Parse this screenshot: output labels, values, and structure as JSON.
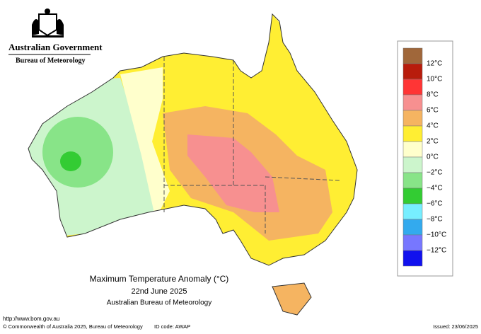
{
  "header": {
    "government": "Australian Government",
    "bureau": "Bureau of Meteorology"
  },
  "map": {
    "title": "Maximum Temperature Anomaly (°C)",
    "date": "22nd June 2025",
    "source": "Australian Bureau of Meteorology"
  },
  "legend": {
    "colors": [
      "#a0673a",
      "#b81c0c",
      "#ff3535",
      "#f79090",
      "#f5b461",
      "#ffee33",
      "#ffffcc",
      "#ccf5cc",
      "#88e488",
      "#33cc33",
      "#77eeff",
      "#33aaee",
      "#7777ff",
      "#1111ee"
    ],
    "labels": [
      "12°C",
      "10°C",
      "8°C",
      "6°C",
      "4°C",
      "2°C",
      "0°C",
      "−2°C",
      "−4°C",
      "−6°C",
      "−8°C",
      "−10°C",
      "−12°C"
    ]
  },
  "footer": {
    "url": "http://www.bom.gov.au",
    "copyright": "© Commonwealth of Australia 2025, Bureau of Meteorology",
    "id_code": "ID code: AWAP",
    "issued": "Issued: 23/06/2025"
  }
}
